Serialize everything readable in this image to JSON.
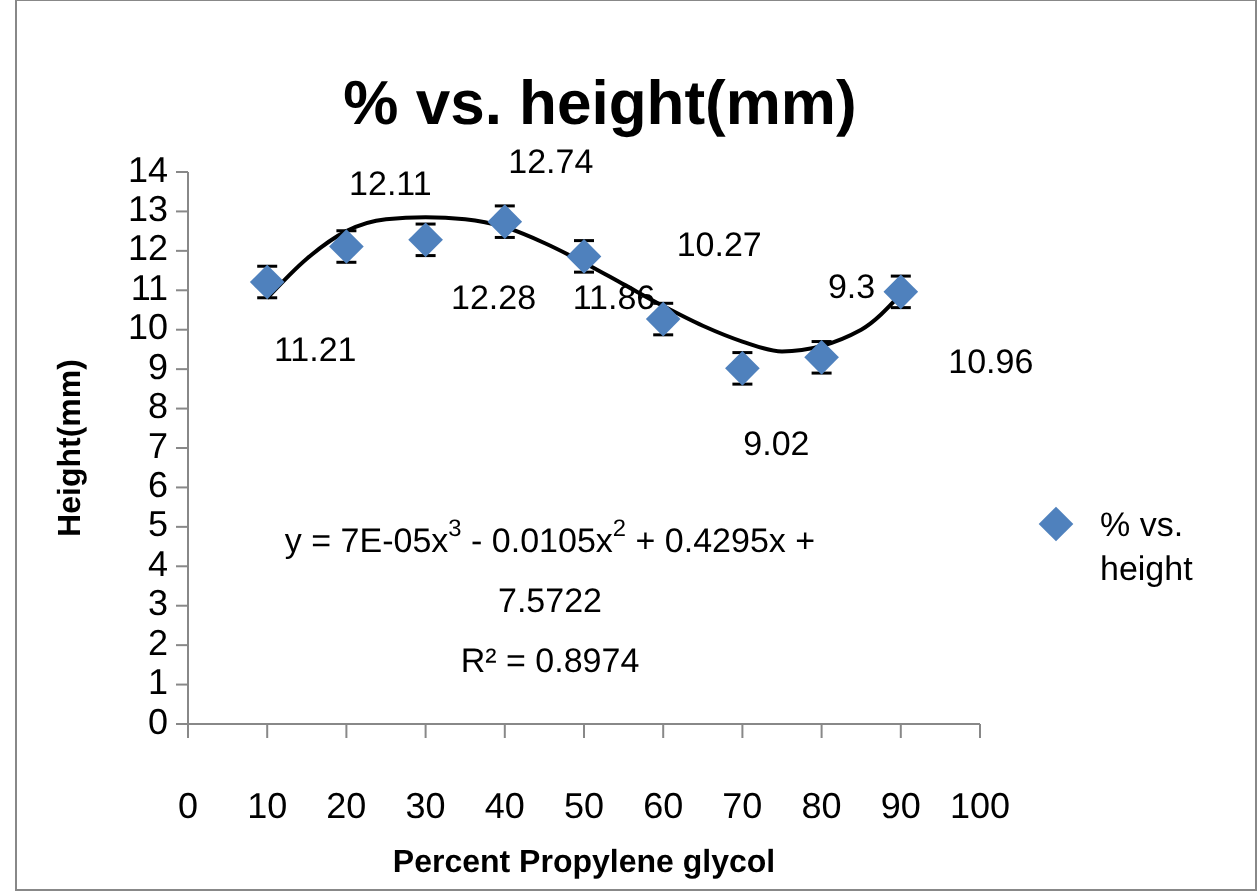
{
  "chart_data": {
    "type": "scatter",
    "title": "%  vs. height(mm)",
    "xlabel": "Percent Propylene glycol",
    "ylabel": "Height(mm)",
    "xlim": [
      0,
      100
    ],
    "xticks": [
      0,
      10,
      20,
      30,
      40,
      50,
      60,
      70,
      80,
      90,
      100
    ],
    "ylim": [
      0,
      14
    ],
    "yticks": [
      0,
      1,
      2,
      3,
      4,
      5,
      6,
      7,
      8,
      9,
      10,
      11,
      12,
      13,
      14
    ],
    "grid": false,
    "legend": "right",
    "marker": "diamond",
    "x": [
      10,
      20,
      30,
      40,
      50,
      60,
      70,
      80,
      90
    ],
    "series": [
      {
        "name": "% vs. height",
        "color": "#4f81bd",
        "values": [
          11.21,
          12.11,
          12.28,
          12.74,
          11.86,
          10.27,
          9.02,
          9.3,
          10.96
        ],
        "value_labels": [
          "11.21",
          "12.11",
          "12.28",
          "12.74",
          "11.86",
          "10.27",
          "9.02",
          "9.3",
          "10.96"
        ],
        "errors": [
          0.4,
          0.4,
          0.4,
          0.4,
          0.4,
          0.4,
          0.4,
          0.4,
          0.4
        ]
      },
      {
        "type": "line",
        "color": "#000000",
        "marker": "none",
        "x": [
          10,
          15,
          20,
          25,
          30,
          35,
          40,
          45,
          50,
          55,
          60,
          65,
          70,
          75,
          85,
          90
        ],
        "values": [
          10.8,
          11.8,
          12.5,
          12.8,
          12.85,
          12.8,
          12.6,
          12.2,
          11.7,
          11.15,
          10.6,
          10.1,
          9.7,
          9.45,
          10.0,
          10.9
        ]
      }
    ],
    "annotations": [
      "y = 7E-05x$^{3}$ - 0.0105x$^{2}$ + 0.4295x + 7.5722",
      "R² = 0.8974"
    ]
  }
}
